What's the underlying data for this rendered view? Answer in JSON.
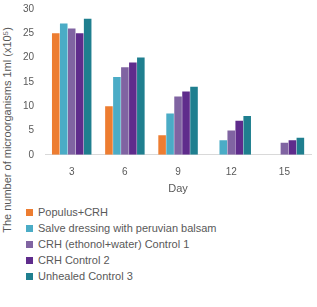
{
  "chart_data": {
    "type": "bar",
    "x_label": "Day",
    "y_label": "The number of microorganisms 1ml (x10⁵)",
    "categories": [
      3,
      6,
      9,
      12,
      15
    ],
    "series": [
      {
        "name": "Populus+CRH",
        "color": "#ed7d31",
        "values": [
          25,
          10,
          4,
          0,
          0
        ]
      },
      {
        "name": "Salve dressing with peruvian balsam",
        "color": "#4bacc6",
        "values": [
          27,
          16,
          8.5,
          3,
          0
        ]
      },
      {
        "name": "CRH (ethonol+water) Control 1",
        "color": "#8064a2",
        "values": [
          26,
          18,
          12,
          5,
          2.5
        ]
      },
      {
        "name": "CRH Control 2",
        "color": "#5f2c8c",
        "values": [
          25,
          19,
          13,
          7,
          3
        ]
      },
      {
        "name": "Unhealed Control 3",
        "color": "#1f7f8f",
        "values": [
          28,
          20,
          14,
          8,
          3.5
        ]
      }
    ],
    "ylim": [
      0,
      30
    ],
    "yticks": [
      0,
      5,
      10,
      15,
      20,
      25,
      30
    ],
    "grid": false,
    "legend": "bottom"
  }
}
